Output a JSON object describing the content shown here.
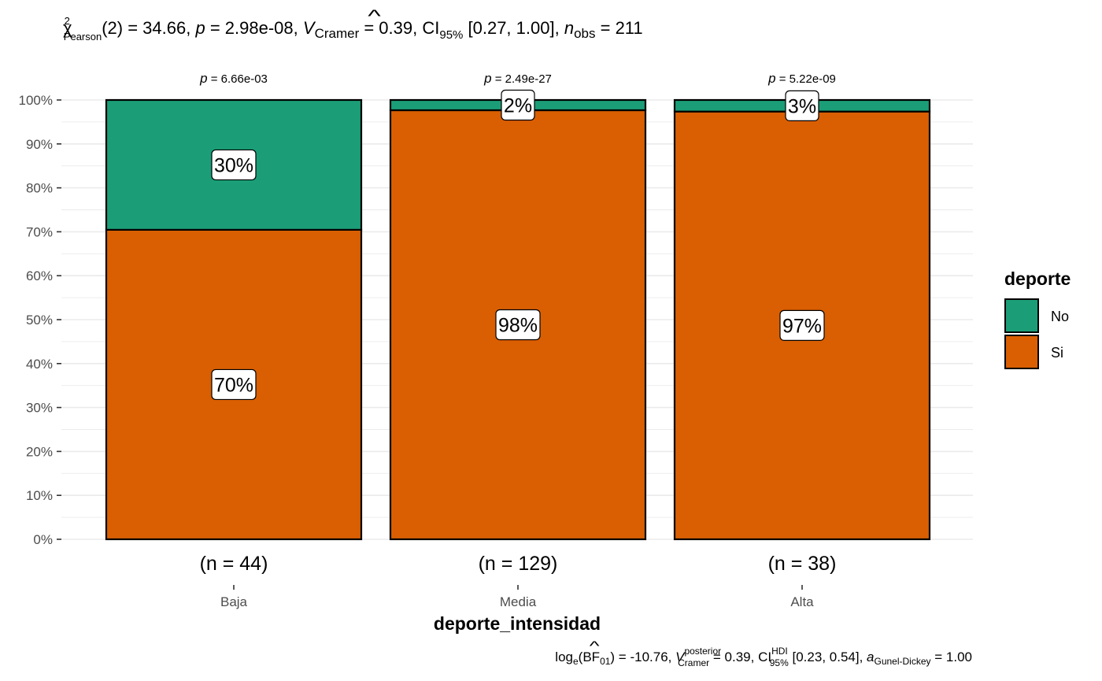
{
  "chart_data": {
    "type": "bar",
    "stacked": true,
    "title": {
      "chi": "χ",
      "sup2": "2",
      "sub_pearson": "Pearson",
      "part1": "(2) = 34.66, ",
      "p_italic": "p",
      "part2": " = 2.98e-08, ",
      "v_italic": "V",
      "hat": "^",
      "sub_cramer": "Cramer",
      "part3": " = 0.39, CI",
      "sub_95": "95%",
      "part4": " [0.27, 1.00], ",
      "n_italic": "n",
      "sub_obs": "obs",
      "part5": " = 211"
    },
    "caption": {
      "log": "log",
      "sub_e": "e",
      "bf_open": "(BF",
      "sub_01": "01",
      "part1": ") = -10.76, ",
      "v_italic": "V",
      "hat": "^",
      "sup_posterior": "posterior",
      "sub_cramer": "Cramer",
      "part2": " = 0.39, CI",
      "sup_hdi": "HDI",
      "sub_95": "95%",
      "part3": " [0.23, 0.54], ",
      "a_italic": "a",
      "sub_gd": "Gunel-Dickey",
      "part4": " = 1.00"
    },
    "xlabel": "deporte_intensidad",
    "ylabel": "",
    "ylim": [
      0,
      100
    ],
    "yticks": [
      "0%",
      "10%",
      "20%",
      "30%",
      "40%",
      "50%",
      "60%",
      "70%",
      "80%",
      "90%",
      "100%"
    ],
    "categories": [
      "Baja",
      "Media",
      "Alta"
    ],
    "counts": [
      "(n = 44)",
      "(n = 129)",
      "(n = 38)"
    ],
    "p_labels": [
      {
        "p": "p",
        "value": " = 6.66e-03"
      },
      {
        "p": "p",
        "value": " = 2.49e-27"
      },
      {
        "p": "p",
        "value": " = 5.22e-09"
      }
    ],
    "series": [
      {
        "name": "Si",
        "color": "#D95F02",
        "values": [
          70.45,
          97.67,
          97.37
        ],
        "labels": [
          "70%",
          "98%",
          "97%"
        ]
      },
      {
        "name": "No",
        "color": "#1B9E77",
        "values": [
          29.55,
          2.33,
          2.63
        ],
        "labels": [
          "30%",
          "2%",
          "3%"
        ]
      }
    ],
    "legend": {
      "title": "deporte",
      "position": "right",
      "items": [
        {
          "label": "No",
          "color": "#1B9E77"
        },
        {
          "label": "Si",
          "color": "#D95F02"
        }
      ]
    },
    "grid": true
  }
}
